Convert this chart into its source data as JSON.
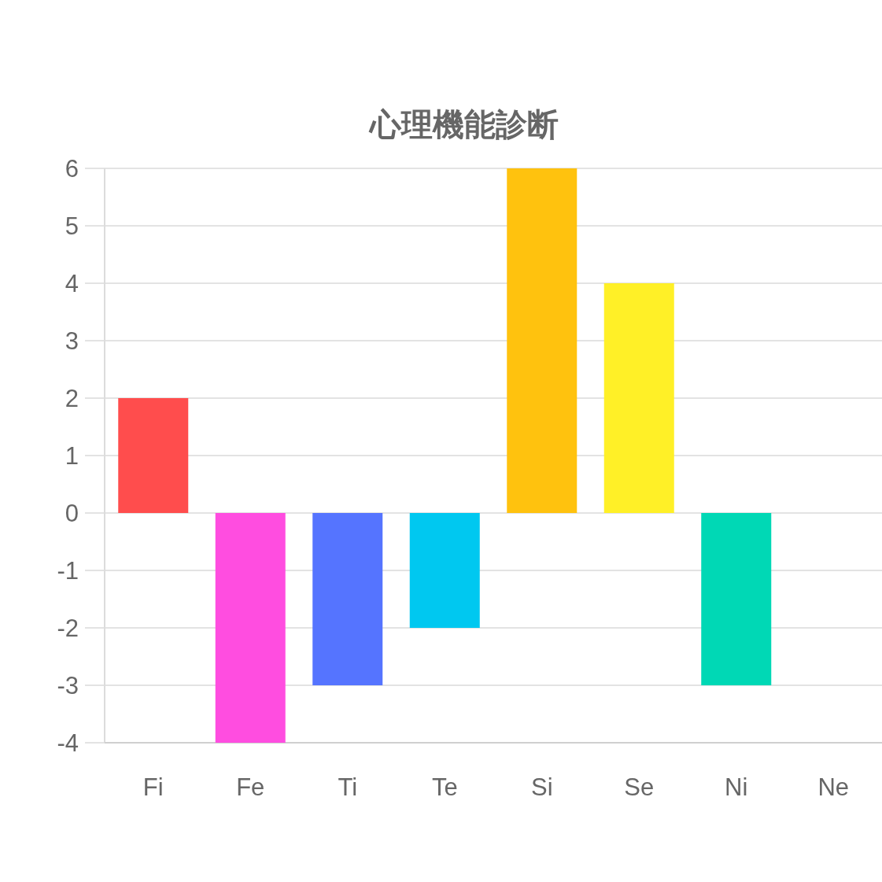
{
  "chart_data": {
    "type": "bar",
    "title": "心理機能診断",
    "categories": [
      "Fi",
      "Fe",
      "Ti",
      "Te",
      "Si",
      "Se",
      "Ni",
      "Ne"
    ],
    "values": [
      2,
      -4,
      -3,
      -2,
      6,
      4,
      -3,
      0
    ],
    "colors": [
      "#ff4d4d",
      "#ff4de0",
      "#5574ff",
      "#00c8f0",
      "#ffc20e",
      "#fff027",
      "#00d8b5",
      null
    ],
    "ylim": [
      -4,
      6
    ],
    "yticks": [
      -4,
      -3,
      -2,
      -1,
      0,
      1,
      2,
      3,
      4,
      5,
      6
    ],
    "grid": "y"
  }
}
